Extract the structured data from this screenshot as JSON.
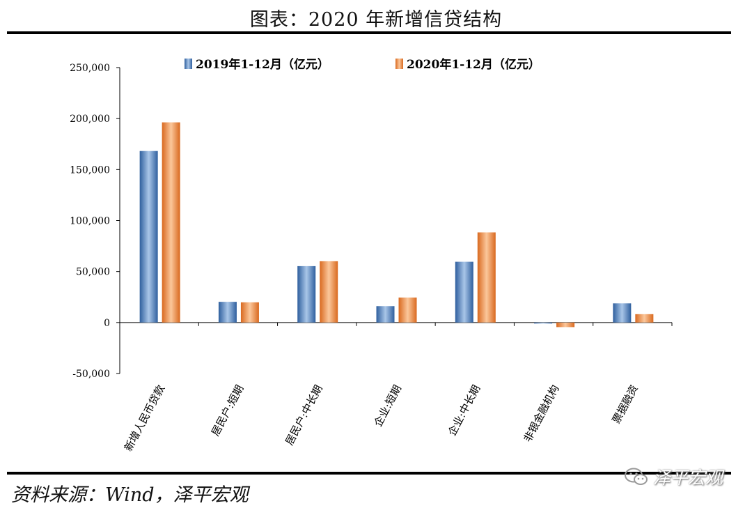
{
  "title": "图表：2020 年新增信贷结构",
  "source": "资料来源：Wind，泽平宏观",
  "watermark": {
    "text": "泽平宏观",
    "icon": "wechat-icon"
  },
  "chart_data": {
    "type": "bar",
    "title": "",
    "xlabel": "",
    "ylabel": "",
    "categories": [
      "新增人民币贷款",
      "居民户:短期",
      "居民户:中长期",
      "企业:短期",
      "企业:中长期",
      "非银金融机构",
      "票据融资"
    ],
    "series": [
      {
        "name": "2019年1-12月（亿元）",
        "color": "#4a7fc0",
        "values": [
          168200,
          20300,
          55300,
          16100,
          59600,
          -1000,
          18800
        ]
      },
      {
        "name": "2020年1-12月（亿元）",
        "color": "#f08a3c",
        "values": [
          196300,
          19800,
          60100,
          24500,
          88400,
          -4500,
          8200
        ]
      }
    ],
    "ylim": [
      -50000,
      250000
    ],
    "yticks": [
      -50000,
      0,
      50000,
      100000,
      150000,
      200000,
      250000
    ],
    "ytick_labels": [
      "-50,000",
      "0",
      "50,000",
      "100,000",
      "150,000",
      "200,000",
      "250,000"
    ],
    "legend_position": "top-center",
    "grid": false
  }
}
